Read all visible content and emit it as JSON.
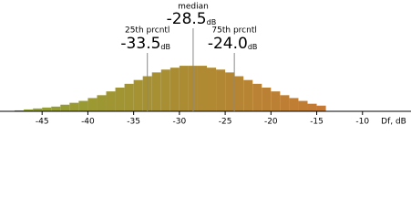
{
  "chart_data": {
    "type": "histogram",
    "x_label": "Df, dB",
    "bins": [
      -48,
      -47,
      -46,
      -45,
      -44,
      -43,
      -42,
      -41,
      -40,
      -39,
      -38,
      -37,
      -36,
      -35,
      -34,
      -33,
      -32,
      -31,
      -30,
      -29,
      -28,
      -27,
      -26,
      -25,
      -24,
      -23,
      -22,
      -21,
      -20,
      -19,
      -18,
      -17,
      -16,
      -15,
      -14
    ],
    "values": [
      1,
      2,
      3,
      4,
      5,
      7,
      9,
      11,
      14,
      17,
      21,
      25,
      29,
      33,
      37,
      41,
      44,
      46,
      48,
      48,
      48,
      46,
      44,
      41,
      37,
      33,
      29,
      25,
      21,
      17,
      14,
      11,
      8,
      6
    ],
    "colors": [
      "#8fa232",
      "#c47a34"
    ],
    "xlim": [
      -49.6,
      -4.7
    ],
    "xticks": [
      -45,
      -40,
      -35,
      -30,
      -25,
      -20,
      -15,
      -10
    ],
    "ylim": [
      0,
      50
    ],
    "markers": [
      {
        "name": "25th prcntl",
        "value": -33.5,
        "value_label": "-33.5",
        "unit": "dB"
      },
      {
        "name": "median",
        "value": -28.5,
        "value_label": "-28.5",
        "unit": "dB"
      },
      {
        "name": "75th prcntl",
        "value": -24.0,
        "value_label": "-24.0",
        "unit": "dB"
      }
    ]
  }
}
